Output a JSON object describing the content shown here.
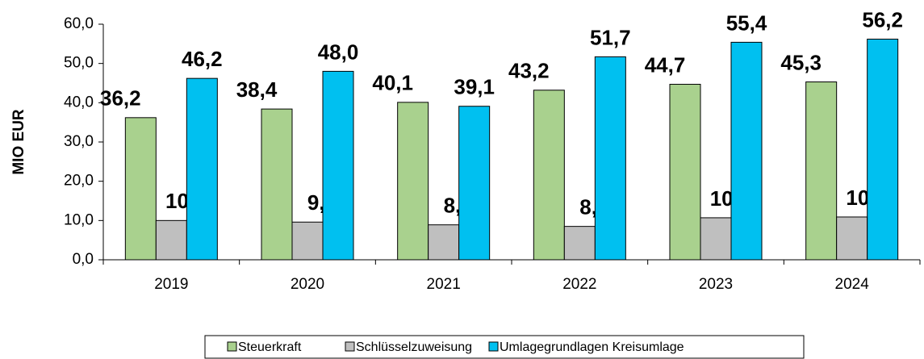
{
  "chart_data": {
    "type": "bar",
    "y_label": "MIO EUR",
    "categories": [
      "2019",
      "2020",
      "2021",
      "2022",
      "2023",
      "2024"
    ],
    "series": [
      {
        "name": "Steuerkraft",
        "color": "#a9d18e",
        "values": [
          36.2,
          38.4,
          40.1,
          43.2,
          44.7,
          45.3
        ],
        "value_labels": [
          "36,2",
          "38,4",
          "40,1",
          "43,2",
          "44,7",
          "45,3"
        ]
      },
      {
        "name": "Schlüsselzuweisung",
        "color": "#bfbfbf",
        "values": [
          10.0,
          9.6,
          8.9,
          8.5,
          10.7,
          10.9
        ],
        "value_labels": [
          "10,0",
          "9,6",
          "8,9",
          "8,5",
          "10,7",
          "10,9"
        ]
      },
      {
        "name": "Umlagegrundlagen Kreisumlage",
        "color": "#00c0f0",
        "values": [
          46.2,
          48.0,
          39.1,
          51.7,
          55.4,
          56.2
        ],
        "value_labels": [
          "46,2",
          "48,0",
          "39,1",
          "51,7",
          "55,4",
          "56,2"
        ]
      }
    ],
    "ylim": [
      0,
      60
    ],
    "yticks": [
      {
        "value": 0,
        "label": "0,0"
      },
      {
        "value": 10,
        "label": "10,0"
      },
      {
        "value": 20,
        "label": "20,0"
      },
      {
        "value": 30,
        "label": "30,0"
      },
      {
        "value": 40,
        "label": "40,0"
      },
      {
        "value": 50,
        "label": "50,0"
      },
      {
        "value": 60,
        "label": "60,0"
      }
    ],
    "legend": "bottom"
  }
}
